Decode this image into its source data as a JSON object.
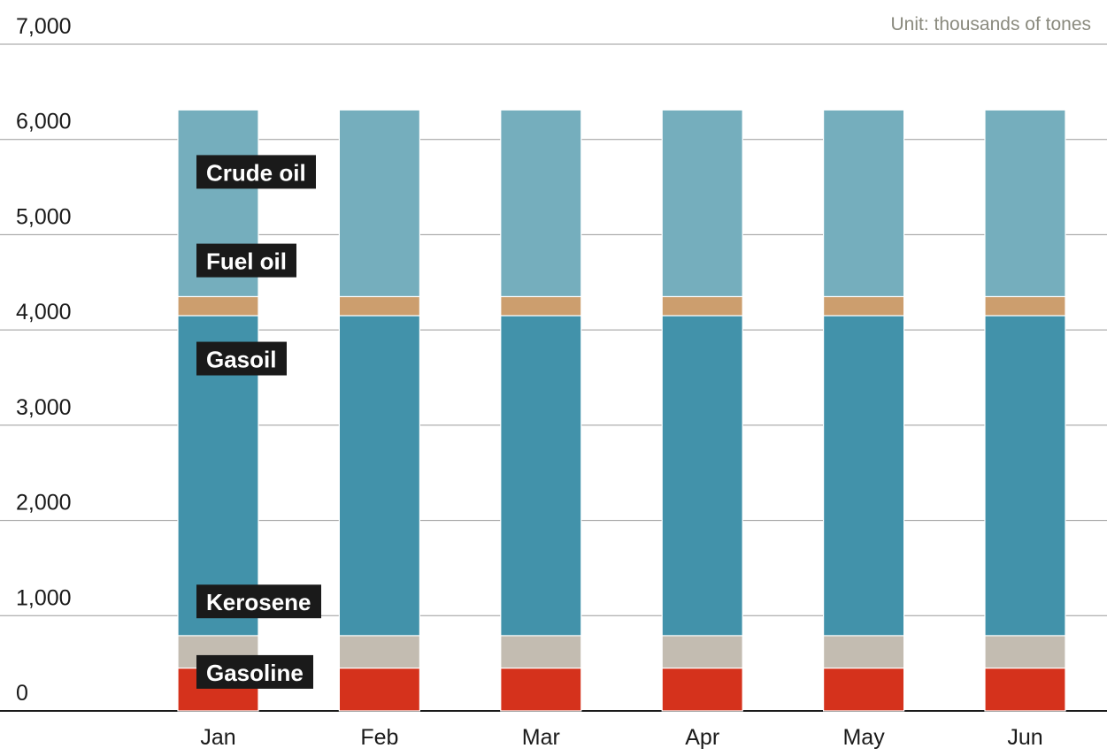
{
  "chart_data": {
    "type": "bar",
    "stacked": true,
    "unit_note": "Unit: thousands of tones",
    "categories": [
      "Jan",
      "Feb",
      "Mar",
      "Apr",
      "May",
      "Jun"
    ],
    "ylim": [
      0,
      7000
    ],
    "yticks": [
      0,
      1000,
      2000,
      3000,
      4000,
      5000,
      6000,
      7000
    ],
    "ytick_labels": [
      "0",
      "1,000",
      "2,000",
      "3,000",
      "4,000",
      "5,000",
      "6,000",
      "7,000"
    ],
    "grid": true,
    "series": [
      {
        "name": "Gasoline",
        "color": "#d5321c",
        "values": [
          450,
          450,
          450,
          450,
          450,
          450
        ]
      },
      {
        "name": "Kerosene",
        "color": "#c3bcb1",
        "values": [
          340,
          340,
          340,
          340,
          340,
          340
        ]
      },
      {
        "name": "Gasoil",
        "color": "#4292aa",
        "values": [
          3360,
          3360,
          3360,
          3360,
          3360,
          3360
        ]
      },
      {
        "name": "Fuel oil",
        "color": "#cc9e6e",
        "values": [
          200,
          200,
          200,
          200,
          200,
          200
        ]
      },
      {
        "name": "Crude oil",
        "color": "#75aebd",
        "values": [
          1960,
          1960,
          1960,
          1960,
          1960,
          1960
        ]
      }
    ],
    "series_label_order": [
      "Crude oil",
      "Fuel oil",
      "Gasoil",
      "Kerosene",
      "Gasoline"
    ],
    "label_value_positions": [
      5650,
      4720,
      3690,
      1140,
      400
    ]
  }
}
